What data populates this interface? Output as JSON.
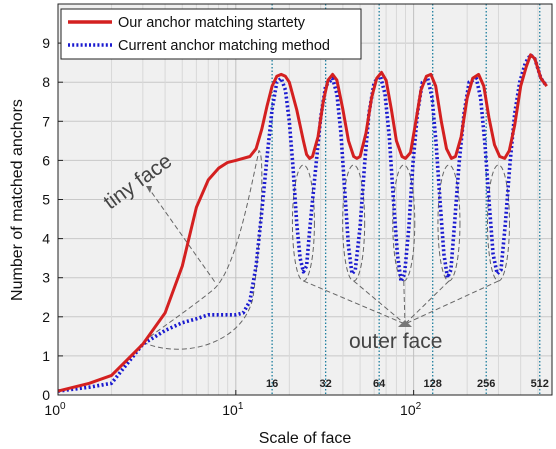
{
  "chart_data": {
    "type": "line",
    "title": "",
    "xlabel": "Scale of face",
    "ylabel": "Number of matched anchors",
    "x_scale": "log",
    "xlim": [
      1,
      600
    ],
    "ylim": [
      0,
      10
    ],
    "grid": true,
    "legend_position": "top-left",
    "x_ticks": [
      {
        "value": 1,
        "label_base": "10",
        "label_exp": "0"
      },
      {
        "value": 10,
        "label_base": "10",
        "label_exp": "1"
      },
      {
        "value": 100,
        "label_base": "10",
        "label_exp": "2"
      }
    ],
    "y_ticks": [
      0,
      1,
      2,
      3,
      4,
      5,
      6,
      7,
      8,
      9
    ],
    "series": [
      {
        "name": "Our anchor matching startety",
        "color": "#d42020",
        "style": "solid",
        "points": [
          [
            1,
            0.1
          ],
          [
            1.5,
            0.3
          ],
          [
            2,
            0.5
          ],
          [
            3,
            1.3
          ],
          [
            4,
            2.1
          ],
          [
            5,
            3.3
          ],
          [
            6,
            4.8
          ],
          [
            7,
            5.5
          ],
          [
            8,
            5.8
          ],
          [
            9,
            5.95
          ],
          [
            10,
            6.0
          ],
          [
            12,
            6.1
          ],
          [
            13,
            6.3
          ],
          [
            14,
            6.8
          ],
          [
            15,
            7.4
          ],
          [
            16,
            7.9
          ],
          [
            17,
            8.15
          ],
          [
            18,
            8.2
          ],
          [
            19,
            8.15
          ],
          [
            20,
            8.0
          ],
          [
            22,
            7.3
          ],
          [
            24,
            6.5
          ],
          [
            25,
            6.15
          ],
          [
            26,
            6.05
          ],
          [
            27,
            6.1
          ],
          [
            29,
            6.6
          ],
          [
            31,
            7.5
          ],
          [
            33,
            8.05
          ],
          [
            35,
            8.2
          ],
          [
            37,
            8.05
          ],
          [
            40,
            7.3
          ],
          [
            43,
            6.5
          ],
          [
            46,
            6.1
          ],
          [
            48,
            6.05
          ],
          [
            50,
            6.1
          ],
          [
            54,
            6.7
          ],
          [
            58,
            7.6
          ],
          [
            62,
            8.1
          ],
          [
            66,
            8.25
          ],
          [
            70,
            8.05
          ],
          [
            75,
            7.3
          ],
          [
            80,
            6.5
          ],
          [
            86,
            6.1
          ],
          [
            90,
            6.05
          ],
          [
            96,
            6.2
          ],
          [
            102,
            6.9
          ],
          [
            110,
            7.8
          ],
          [
            118,
            8.15
          ],
          [
            125,
            8.2
          ],
          [
            133,
            7.9
          ],
          [
            143,
            7.0
          ],
          [
            153,
            6.3
          ],
          [
            163,
            6.05
          ],
          [
            172,
            6.1
          ],
          [
            185,
            6.6
          ],
          [
            200,
            7.6
          ],
          [
            215,
            8.1
          ],
          [
            232,
            8.2
          ],
          [
            248,
            7.9
          ],
          [
            265,
            7.1
          ],
          [
            285,
            6.4
          ],
          [
            305,
            6.1
          ],
          [
            325,
            6.05
          ],
          [
            345,
            6.25
          ],
          [
            370,
            6.9
          ],
          [
            400,
            7.9
          ],
          [
            430,
            8.4
          ],
          [
            455,
            8.7
          ],
          [
            480,
            8.6
          ],
          [
            520,
            8.1
          ],
          [
            560,
            7.9
          ]
        ]
      },
      {
        "name": "Current anchor matching method",
        "color": "#1a1ad0",
        "style": "dotted",
        "points": [
          [
            1,
            0.1
          ],
          [
            1.5,
            0.2
          ],
          [
            2,
            0.3
          ],
          [
            3,
            1.3
          ],
          [
            4,
            1.65
          ],
          [
            5,
            1.85
          ],
          [
            6,
            1.95
          ],
          [
            7,
            2.05
          ],
          [
            8,
            2.05
          ],
          [
            9,
            2.05
          ],
          [
            10,
            2.05
          ],
          [
            11,
            2.1
          ],
          [
            12,
            2.4
          ],
          [
            13,
            3.3
          ],
          [
            14,
            4.7
          ],
          [
            15,
            6.1
          ],
          [
            16,
            7.3
          ],
          [
            17,
            8.0
          ],
          [
            18,
            8.1
          ],
          [
            19,
            7.8
          ],
          [
            20,
            7.0
          ],
          [
            21,
            5.8
          ],
          [
            22,
            4.4
          ],
          [
            23,
            3.5
          ],
          [
            24,
            3.15
          ],
          [
            25,
            3.3
          ],
          [
            26,
            4.2
          ],
          [
            28,
            5.7
          ],
          [
            30,
            7.1
          ],
          [
            32,
            7.9
          ],
          [
            35,
            8.1
          ],
          [
            37,
            7.7
          ],
          [
            39,
            6.7
          ],
          [
            41,
            5.2
          ],
          [
            43,
            3.8
          ],
          [
            45,
            3.1
          ],
          [
            47,
            3.2
          ],
          [
            50,
            4.3
          ],
          [
            53,
            5.9
          ],
          [
            56,
            7.2
          ],
          [
            60,
            8.0
          ],
          [
            65,
            8.15
          ],
          [
            69,
            7.7
          ],
          [
            73,
            6.6
          ],
          [
            77,
            5.0
          ],
          [
            81,
            3.6
          ],
          [
            85,
            2.9
          ],
          [
            89,
            3.1
          ],
          [
            94,
            4.3
          ],
          [
            99,
            5.9
          ],
          [
            105,
            7.2
          ],
          [
            112,
            8.0
          ],
          [
            120,
            8.1
          ],
          [
            127,
            7.6
          ],
          [
            134,
            6.4
          ],
          [
            141,
            4.9
          ],
          [
            148,
            3.6
          ],
          [
            155,
            3.0
          ],
          [
            162,
            3.2
          ],
          [
            170,
            4.4
          ],
          [
            180,
            5.9
          ],
          [
            192,
            7.2
          ],
          [
            205,
            8.0
          ],
          [
            225,
            8.1
          ],
          [
            238,
            7.6
          ],
          [
            252,
            6.4
          ],
          [
            266,
            4.9
          ],
          [
            280,
            3.6
          ],
          [
            295,
            3.1
          ],
          [
            310,
            3.2
          ],
          [
            328,
            4.4
          ],
          [
            348,
            5.9
          ],
          [
            370,
            7.2
          ],
          [
            395,
            8.0
          ],
          [
            425,
            8.5
          ],
          [
            455,
            8.7
          ],
          [
            480,
            8.6
          ],
          [
            520,
            8.1
          ],
          [
            560,
            7.9
          ]
        ]
      }
    ],
    "vertical_lines": [
      {
        "x": 16,
        "label": "16"
      },
      {
        "x": 32,
        "label": "32"
      },
      {
        "x": 64,
        "label": "64"
      },
      {
        "x": 128,
        "label": "128"
      },
      {
        "x": 256,
        "label": "256"
      },
      {
        "x": 512,
        "label": "512"
      }
    ],
    "annotations": {
      "tiny_face": "tiny face",
      "outer_face": "outer face"
    }
  }
}
